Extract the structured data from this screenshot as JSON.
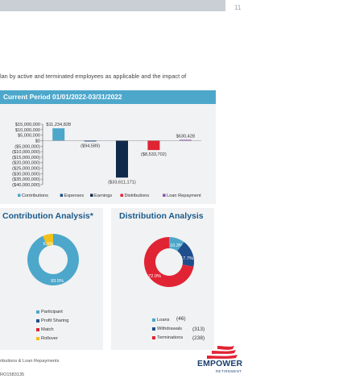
{
  "page": {
    "number": "11"
  },
  "intro_text": "lan by active and terminated employees as applicable and the impact of",
  "current_period": {
    "heading": "Current Period 01/01/2022-03/31/2022",
    "chart_data": {
      "type": "bar",
      "categories": [
        "Contributions",
        "Expenses",
        "Earnings",
        "Distributions",
        "Loan Repayment"
      ],
      "values": [
        11234828,
        -94589,
        -33611171,
        -8533702,
        630428
      ],
      "value_labels": [
        "$11,234,828",
        "($94,589)",
        "($33,611,171)",
        "($8,533,702)",
        "$630,428"
      ],
      "colors": [
        "#4da7cb",
        "#1f4e8c",
        "#0f2a4a",
        "#e02434",
        "#8a4fb0"
      ],
      "ylim": [
        -40000000,
        15000000
      ],
      "y_ticks": [
        15000000,
        10000000,
        5000000,
        0,
        -5000000,
        -10000000,
        -15000000,
        -20000000,
        -25000000,
        -30000000,
        -35000000,
        -40000000
      ],
      "y_tick_labels": [
        "$15,000,000",
        "$10,000,000",
        "$5,000,000",
        "$0",
        "($5,000,000)",
        "($10,000,000)",
        "($15,000,000)",
        "($20,000,000)",
        "($25,000,000)",
        "($30,000,000)",
        "($35,000,000)",
        "($40,000,000)"
      ],
      "legend_position": "bottom"
    }
  },
  "contribution_analysis": {
    "title": "Contribution Analysis*",
    "chart_data": {
      "type": "pie",
      "labels": [
        "Participant",
        "Profit Sharing",
        "Match",
        "Rollover"
      ],
      "values": [
        93.5,
        0.0,
        0.0,
        6.5
      ],
      "slice_labels": [
        "93.5%",
        "",
        "",
        "6.5%"
      ],
      "colors": [
        "#4da7cb",
        "#1f4e8c",
        "#e02434",
        "#f3c018"
      ],
      "legend_position": "bottom"
    }
  },
  "distribution_analysis": {
    "title": "Distribution Analysis",
    "chart_data": {
      "type": "pie",
      "labels": [
        "Loans",
        "Withdrawals",
        "Terminations"
      ],
      "counts": [
        "(46)",
        "(313)",
        "(238)"
      ],
      "values": [
        10.3,
        17.7,
        72.0
      ],
      "slice_labels": [
        "10.3%",
        "17.7%",
        "72.0%"
      ],
      "colors": [
        "#4da7cb",
        "#1f4e8c",
        "#e02434"
      ],
      "legend_position": "bottom"
    }
  },
  "footnote": "nbutions & Loan Repayments",
  "ref_code": "RO1583135",
  "logo": {
    "name": "EMPOWER",
    "sub": "RETIREMENT"
  }
}
